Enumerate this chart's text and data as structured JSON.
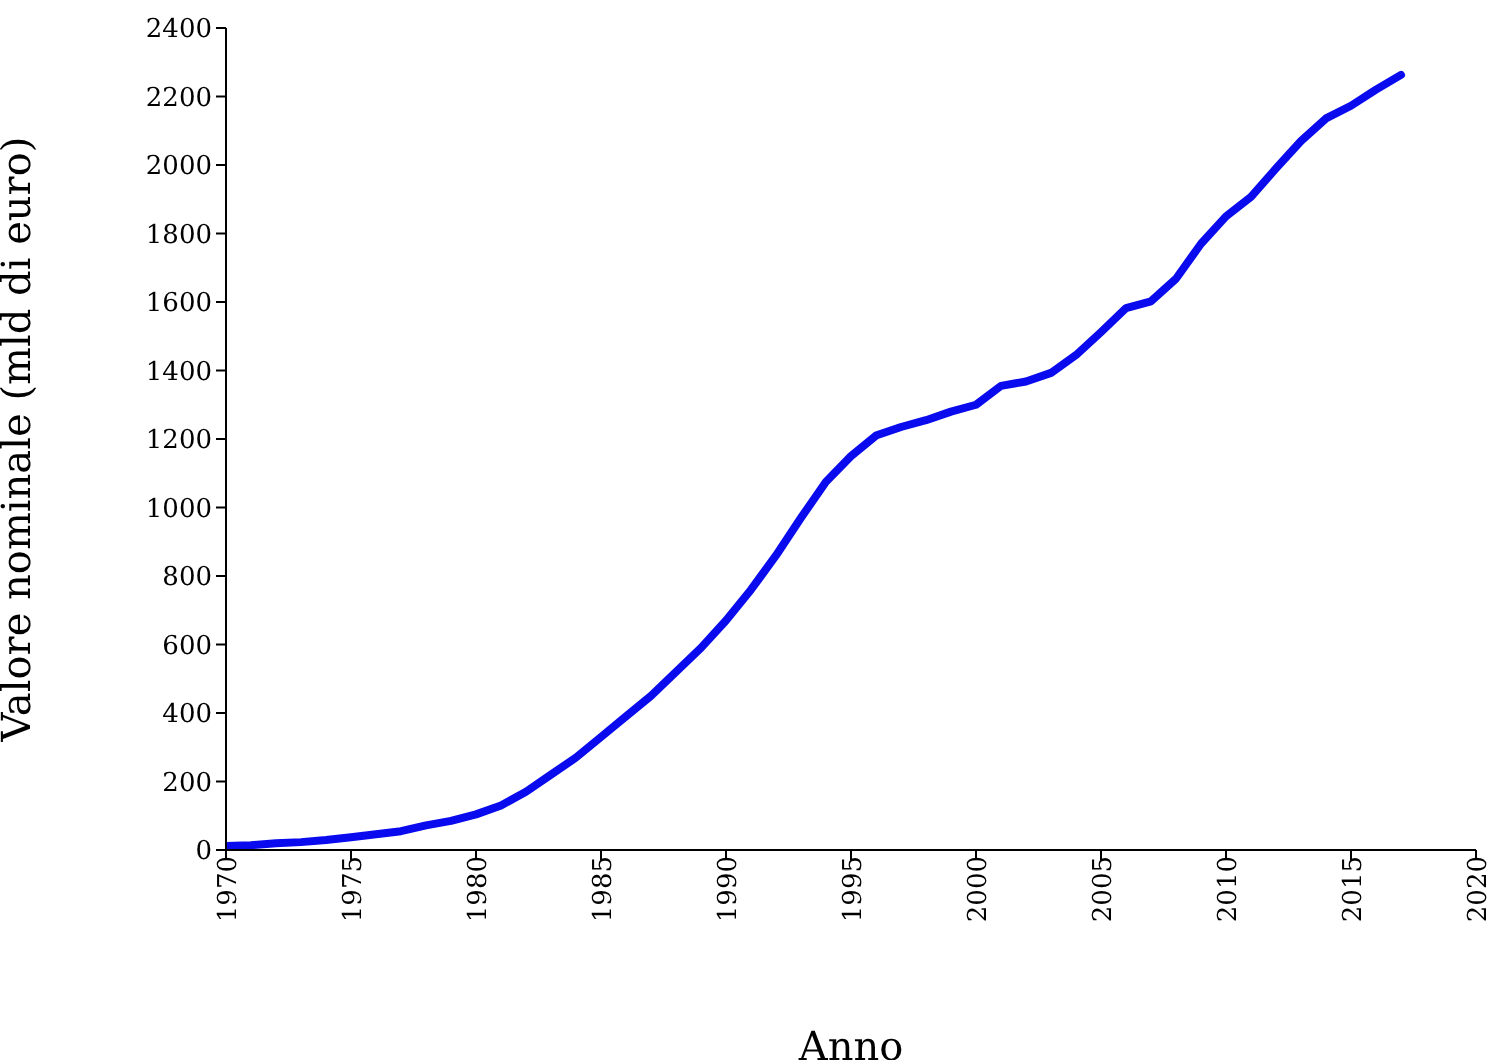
{
  "chart_data": {
    "type": "line",
    "xlabel": "Anno",
    "ylabel": "Valore nominale (mld di euro)",
    "x": [
      1970,
      1971,
      1972,
      1973,
      1974,
      1975,
      1976,
      1977,
      1978,
      1979,
      1980,
      1981,
      1982,
      1983,
      1984,
      1985,
      1986,
      1987,
      1988,
      1989,
      1990,
      1991,
      1992,
      1993,
      1994,
      1995,
      1996,
      1997,
      1998,
      1999,
      2000,
      2001,
      2002,
      2003,
      2004,
      2005,
      2006,
      2007,
      2008,
      2009,
      2010,
      2011,
      2012,
      2013,
      2014,
      2015,
      2016,
      2017
    ],
    "series": [
      {
        "color": "#0a0aee",
        "values": [
          12,
          14,
          20,
          23,
          29,
          37,
          46,
          55,
          72,
          85,
          104,
          130,
          170,
          220,
          270,
          330,
          390,
          450,
          520,
          590,
          670,
          760,
          860,
          970,
          1075,
          1150,
          1210,
          1235,
          1255,
          1280,
          1300,
          1355,
          1368,
          1393,
          1445,
          1512,
          1582,
          1602,
          1668,
          1770,
          1850,
          1907,
          1990,
          2070,
          2136,
          2173,
          2220,
          2263
        ]
      }
    ],
    "xlim": [
      1970,
      2020
    ],
    "xticks": [
      1970,
      1975,
      1980,
      1985,
      1990,
      1995,
      2000,
      2005,
      2010,
      2015,
      2020
    ],
    "ylim": [
      0,
      2400
    ],
    "yticks": [
      0,
      200,
      400,
      600,
      800,
      1000,
      1200,
      1400,
      1600,
      1800,
      2000,
      2200,
      2400
    ],
    "grid": false,
    "legend": false,
    "marker": "none",
    "line_style": "solid"
  }
}
